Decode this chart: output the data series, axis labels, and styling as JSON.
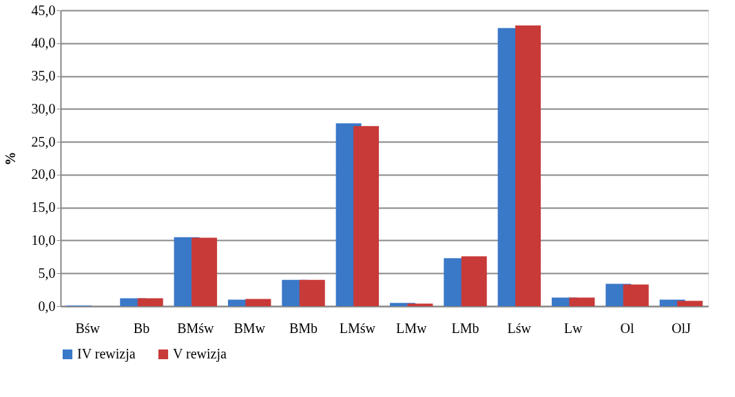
{
  "chart_data": {
    "type": "bar",
    "ylabel": "%",
    "categories": [
      "Bśw",
      "Bb",
      "BMśw",
      "BMw",
      "BMb",
      "LMśw",
      "LMw",
      "LMb",
      "Lśw",
      "Lw",
      "Ol",
      "OlJ"
    ],
    "series": [
      {
        "name": "IV rewizja",
        "color": "#3a78c8",
        "values": [
          0.1,
          1.2,
          10.5,
          1.0,
          4.0,
          27.8,
          0.5,
          7.3,
          42.3,
          1.3,
          3.4,
          1.0
        ]
      },
      {
        "name": "V rewizja",
        "color": "#c83a38",
        "values": [
          0.0,
          1.2,
          10.4,
          1.1,
          4.0,
          27.4,
          0.4,
          7.6,
          42.7,
          1.3,
          3.3,
          0.8
        ]
      }
    ],
    "ylim": [
      0,
      45
    ],
    "yticks": [
      {
        "value": 0,
        "label": "0,0"
      },
      {
        "value": 5,
        "label": "5,0"
      },
      {
        "value": 10,
        "label": "10,0"
      },
      {
        "value": 15,
        "label": "15,0"
      },
      {
        "value": 20,
        "label": "20,0"
      },
      {
        "value": 25,
        "label": "25,0"
      },
      {
        "value": 30,
        "label": "30,0"
      },
      {
        "value": 35,
        "label": "35,0"
      },
      {
        "value": 40,
        "label": "40,0"
      },
      {
        "value": 45,
        "label": "45,0"
      }
    ],
    "grid": "y",
    "legend": "bottom"
  }
}
